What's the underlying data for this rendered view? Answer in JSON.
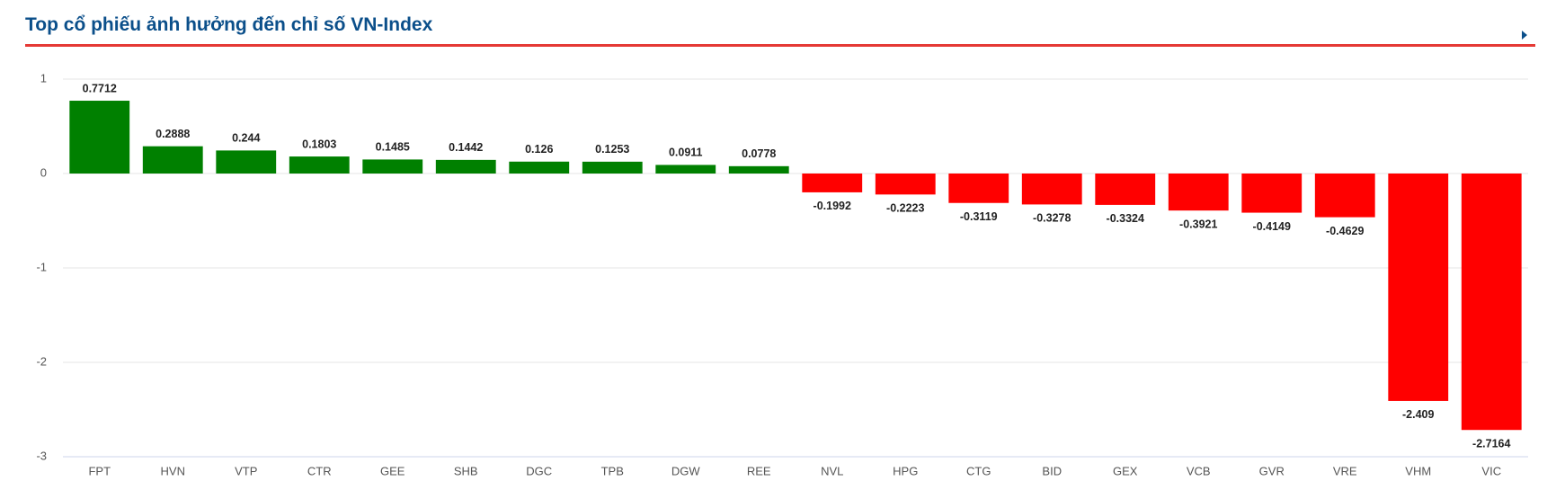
{
  "chart_data": {
    "type": "bar",
    "title": "Top cổ phiếu ảnh hưởng đến chỉ số VN-Index",
    "categories": [
      "FPT",
      "HVN",
      "VTP",
      "CTR",
      "GEE",
      "SHB",
      "DGC",
      "TPB",
      "DGW",
      "REE",
      "NVL",
      "HPG",
      "CTG",
      "BID",
      "GEX",
      "VCB",
      "GVR",
      "VRE",
      "VHM",
      "VIC"
    ],
    "values": [
      0.7712,
      0.2888,
      0.244,
      0.1803,
      0.1485,
      0.1442,
      0.126,
      0.1253,
      0.0911,
      0.0778,
      -0.1992,
      -0.2223,
      -0.3119,
      -0.3278,
      -0.3324,
      -0.3921,
      -0.4149,
      -0.4629,
      -2.409,
      -2.7164
    ],
    "colors": [
      "#008000",
      "#008000",
      "#008000",
      "#008000",
      "#008000",
      "#008000",
      "#008000",
      "#008000",
      "#008000",
      "#008000",
      "#ff0000",
      "#ff0000",
      "#ff0000",
      "#ff0000",
      "#ff0000",
      "#ff0000",
      "#ff0000",
      "#ff0000",
      "#ff0000",
      "#ff0000"
    ],
    "ylim": [
      -3,
      1
    ],
    "yticks": [
      -3,
      -2,
      -1,
      0,
      1
    ],
    "grid": true
  }
}
